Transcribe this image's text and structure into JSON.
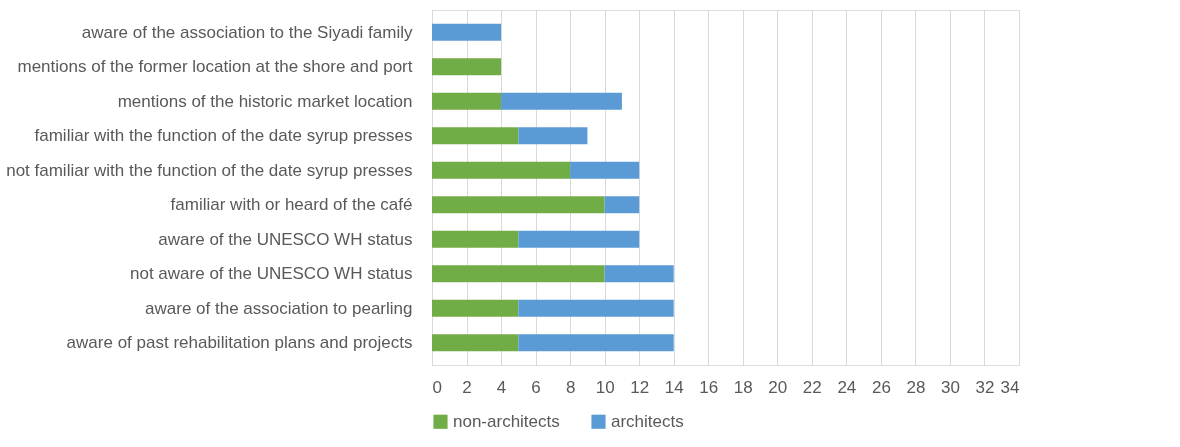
{
  "chart_data": {
    "type": "bar",
    "orientation": "horizontal",
    "stacked": true,
    "categories": [
      "aware of the association to the Siyadi family",
      "mentions of the former location at the shore and port",
      "mentions of the  historic market location",
      "familiar with the function of the date syrup presses",
      "not familiar with the function of the date syrup presses",
      "familiar with or heard of the café",
      "aware of the  UNESCO WH status",
      "not aware of the  UNESCO WH status",
      "aware of the association to pearling",
      "aware of past rehabilitation plans and projects"
    ],
    "series": [
      {
        "name": "non-architects",
        "color": "#70ad47",
        "values": [
          0,
          4,
          4,
          5,
          8,
          10,
          5,
          10,
          5,
          5
        ]
      },
      {
        "name": "architects",
        "color": "#5b9bd5",
        "values": [
          4,
          0,
          7,
          4,
          4,
          2,
          7,
          4,
          9,
          9
        ]
      }
    ],
    "xlim": [
      0,
      34
    ],
    "xticks": [
      0,
      2,
      4,
      6,
      8,
      10,
      12,
      14,
      16,
      18,
      20,
      22,
      24,
      26,
      28,
      30,
      32,
      34
    ],
    "grid": "x",
    "legend": "bottom"
  }
}
